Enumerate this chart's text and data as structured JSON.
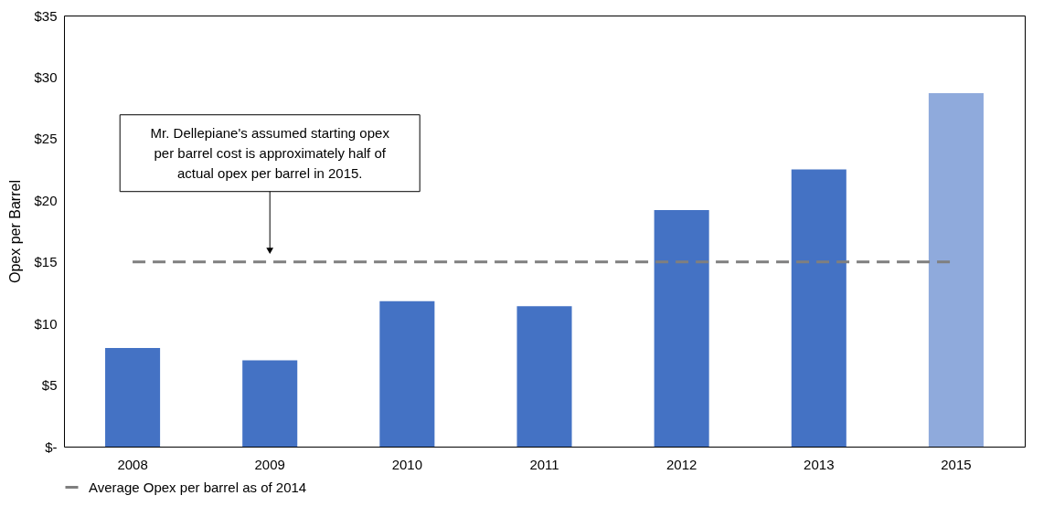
{
  "chart_data": {
    "type": "bar",
    "ylabel": "Opex per Barrel",
    "categories": [
      "2008",
      "2009",
      "2010",
      "2011",
      "2012",
      "2013",
      "2015"
    ],
    "values": [
      8.0,
      7.0,
      11.8,
      11.4,
      19.2,
      22.5,
      28.7
    ],
    "colors": [
      "#4472c4",
      "#4472c4",
      "#4472c4",
      "#4472c4",
      "#4472c4",
      "#4472c4",
      "#8faadc"
    ],
    "ylim": [
      0,
      35
    ],
    "yticks": [
      {
        "value": 0,
        "label": "$-"
      },
      {
        "value": 5,
        "label": "$5"
      },
      {
        "value": 10,
        "label": "$10"
      },
      {
        "value": 15,
        "label": "$15"
      },
      {
        "value": 20,
        "label": "$20"
      },
      {
        "value": 25,
        "label": "$25"
      },
      {
        "value": 30,
        "label": "$30"
      },
      {
        "value": 35,
        "label": "$35"
      }
    ],
    "ref_lines": [
      {
        "axis": "y",
        "value": 15.0,
        "label": "Average Opex per barrel as of 2014",
        "color": "#7f7f7f",
        "line_style": "dashed"
      }
    ],
    "annotations": [
      "Mr. Dellepiane's assumed starting opex per barrel cost is approximately half of actual opex per barrel in 2015."
    ],
    "grid": false,
    "legend": "bottom"
  }
}
